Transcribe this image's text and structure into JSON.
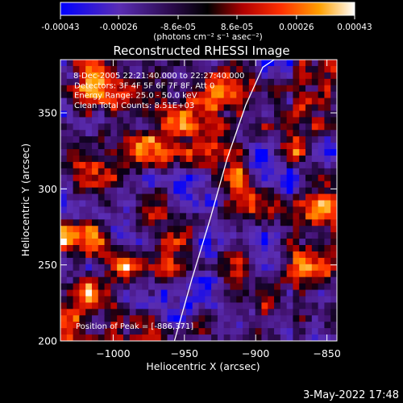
{
  "chart_data": {
    "type": "heatmap",
    "title": "Reconstructed RHESSI Image",
    "colorbar": {
      "ticks": [
        "-0.00043",
        "-0.00026",
        "-8.6e-05",
        "8.6e-05",
        "0.00026",
        "0.00043"
      ],
      "range": [
        -0.00043,
        0.00043
      ],
      "unit_label": "(photons cm⁻² s⁻¹ asec⁻²)",
      "colors": [
        "#0000ff",
        "#5a2db4",
        "#2a0a4a",
        "#000000",
        "#b00000",
        "#ff3000",
        "#ffa000",
        "#ffffff"
      ]
    },
    "xlabel": "Heliocentric X (arcsec)",
    "ylabel": "Heliocentric Y (arcsec)",
    "xlim": [
      -1037,
      -843
    ],
    "ylim": [
      200,
      385
    ],
    "x_ticks": [
      -1000,
      -950,
      -900,
      -850
    ],
    "y_ticks": [
      200,
      250,
      300,
      350
    ],
    "annotations": [
      "8-Dec-2005 22:21:40.000 to 22:27:40.000",
      "Detectors: 3F 4F 5F 6F 7F 8F, Att 0",
      "Energy Range: 25.0 - 50.0 keV",
      "Clean     Total Counts: 8.51E+03"
    ],
    "peak_label": "Position of Peak = [-886,371]",
    "limb_curve": {
      "x": [
        -957,
        -945,
        -932,
        -920,
        -907,
        -895,
        -887
      ],
      "y": [
        200,
        240,
        280,
        320,
        355,
        380,
        385
      ]
    }
  },
  "footer": {
    "date": "3-May-2022 17:48"
  }
}
